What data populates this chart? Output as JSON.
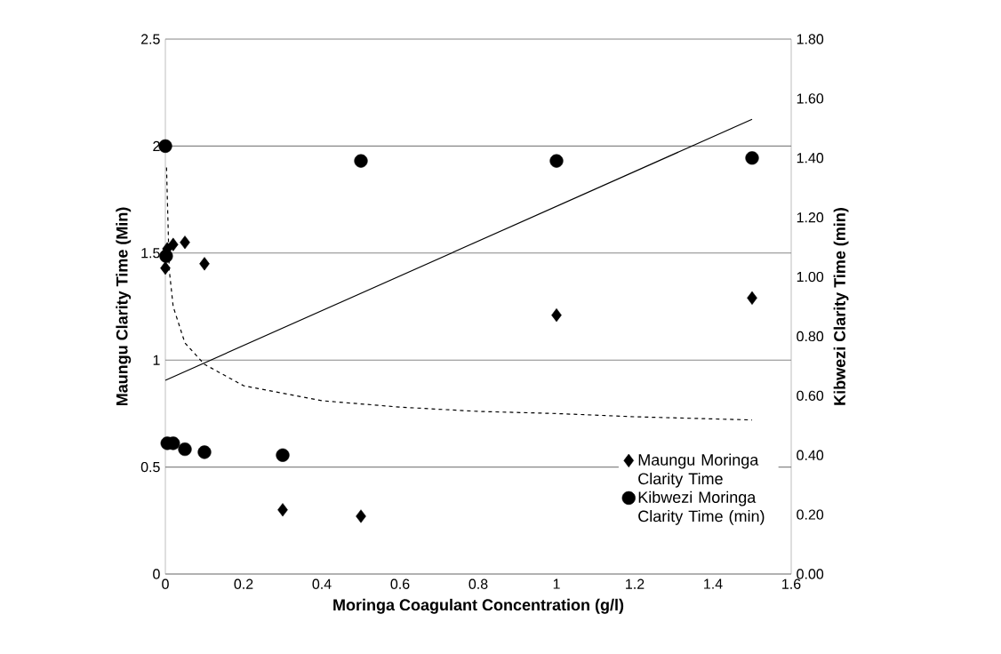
{
  "chart_data": {
    "type": "scatter",
    "xlabel": "Moringa Coagulant Concentration (g/l)",
    "ylabel": "Maungu Clarity Time (Min)",
    "y2label": "Kibwezi Clarity Time (min)",
    "xlim": [
      0,
      1.6
    ],
    "xticks": [
      0,
      0.2,
      0.4,
      0.6,
      0.8,
      1,
      1.2,
      1.4,
      1.6
    ],
    "ylim": [
      0,
      2.5
    ],
    "yticks": [
      0,
      0.5,
      1,
      1.5,
      2,
      2.5
    ],
    "y2lim": [
      0,
      1.8
    ],
    "y2ticks": [
      {
        "value": 0,
        "label": "0.00"
      },
      {
        "value": 0.2,
        "label": "0.20"
      },
      {
        "value": 0.4,
        "label": "0.40"
      },
      {
        "value": 0.6,
        "label": "0.60"
      },
      {
        "value": 0.8,
        "label": "0.80"
      },
      {
        "value": 1.0,
        "label": "1.00"
      },
      {
        "value": 1.2,
        "label": "1.20"
      },
      {
        "value": 1.4,
        "label": "1.40"
      },
      {
        "value": 1.6,
        "label": "1.60"
      },
      {
        "value": 1.8,
        "label": "1.80"
      }
    ],
    "grid": "y",
    "legend": "right",
    "series": [
      {
        "name": "Maungu Moringa Clarity Time",
        "marker": "diamond",
        "color": "#000000",
        "x": [
          0,
          0.005,
          0.02,
          0.05,
          0.1,
          0.3,
          0.5,
          1,
          1.5
        ],
        "values": [
          1.43,
          1.52,
          1.54,
          1.55,
          1.45,
          0.3,
          0.27,
          1.21,
          1.29
        ]
      },
      {
        "name": "Kibwezi Moringa Clarity Time (min)",
        "marker": "circle",
        "axis": "y2",
        "color": "#000000",
        "x": [
          0,
          0.002,
          0.005,
          0.02,
          0.05,
          0.1,
          0.3,
          0.5,
          1,
          1.5
        ],
        "values": [
          1.44,
          1.07,
          0.44,
          0.44,
          0.42,
          0.41,
          0.4,
          1.39,
          1.39,
          1.4
        ]
      },
      {
        "type": "line",
        "line_style": "dashed",
        "color": "#000000",
        "x": [
          0.003,
          0.01,
          0.02,
          0.05,
          0.1,
          0.2,
          0.4,
          0.6,
          0.8,
          1.0,
          1.2,
          1.5
        ],
        "values": [
          1.9,
          1.42,
          1.25,
          1.08,
          0.98,
          0.88,
          0.81,
          0.78,
          0.76,
          0.75,
          0.735,
          0.72
        ]
      },
      {
        "type": "line",
        "line_style": "solid",
        "axis": "y2",
        "color": "#000000",
        "x": [
          0,
          1.5
        ],
        "values": [
          0.652,
          1.53
        ]
      }
    ]
  }
}
